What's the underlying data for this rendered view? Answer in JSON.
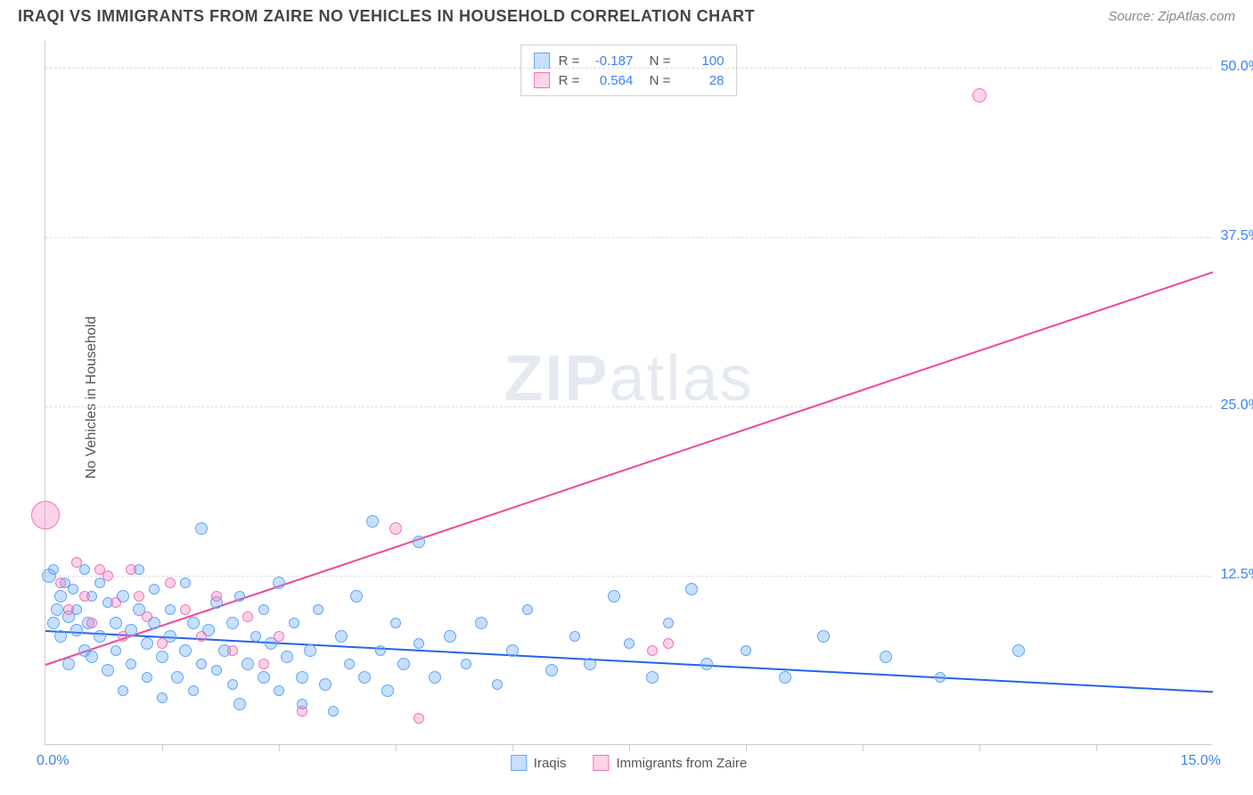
{
  "header": {
    "title": "IRAQI VS IMMIGRANTS FROM ZAIRE NO VEHICLES IN HOUSEHOLD CORRELATION CHART",
    "source": "Source: ZipAtlas.com"
  },
  "chart": {
    "type": "scatter",
    "ylabel": "No Vehicles in Household",
    "watermark": "ZIPatlas",
    "background_color": "#ffffff",
    "grid_color": "#dddddd",
    "axis_color": "#cccccc",
    "xlim": [
      0,
      15
    ],
    "ylim": [
      0,
      52
    ],
    "yticks": [
      {
        "value": 12.5,
        "label": "12.5%"
      },
      {
        "value": 25.0,
        "label": "25.0%"
      },
      {
        "value": 37.5,
        "label": "37.5%"
      },
      {
        "value": 50.0,
        "label": "50.0%"
      }
    ],
    "xticks": [
      1.5,
      3.0,
      4.5,
      6.0,
      7.5,
      9.0,
      10.5,
      12.0,
      13.5
    ],
    "xaxis_left_label": "0.0%",
    "xaxis_right_label": "15.0%",
    "series": [
      {
        "name": "Iraqis",
        "fill_color": "rgba(96,165,250,0.35)",
        "stroke_color": "#60a5fa",
        "trend_color": "#2563eb",
        "R": "-0.187",
        "N": "100",
        "trend": {
          "x1": 0,
          "y1": 8.5,
          "x2": 15,
          "y2": 4.0
        },
        "points": [
          {
            "x": 0.05,
            "y": 12.5,
            "r": 8
          },
          {
            "x": 0.1,
            "y": 9,
            "r": 7
          },
          {
            "x": 0.1,
            "y": 13,
            "r": 6
          },
          {
            "x": 0.15,
            "y": 10,
            "r": 7
          },
          {
            "x": 0.2,
            "y": 11,
            "r": 7
          },
          {
            "x": 0.2,
            "y": 8,
            "r": 7
          },
          {
            "x": 0.25,
            "y": 12,
            "r": 6
          },
          {
            "x": 0.3,
            "y": 9.5,
            "r": 7
          },
          {
            "x": 0.3,
            "y": 6,
            "r": 7
          },
          {
            "x": 0.35,
            "y": 11.5,
            "r": 6
          },
          {
            "x": 0.4,
            "y": 8.5,
            "r": 7
          },
          {
            "x": 0.4,
            "y": 10,
            "r": 6
          },
          {
            "x": 0.5,
            "y": 13,
            "r": 6
          },
          {
            "x": 0.5,
            "y": 7,
            "r": 7
          },
          {
            "x": 0.55,
            "y": 9,
            "r": 7
          },
          {
            "x": 0.6,
            "y": 11,
            "r": 6
          },
          {
            "x": 0.6,
            "y": 6.5,
            "r": 7
          },
          {
            "x": 0.7,
            "y": 8,
            "r": 7
          },
          {
            "x": 0.7,
            "y": 12,
            "r": 6
          },
          {
            "x": 0.8,
            "y": 10.5,
            "r": 6
          },
          {
            "x": 0.8,
            "y": 5.5,
            "r": 7
          },
          {
            "x": 0.9,
            "y": 9,
            "r": 7
          },
          {
            "x": 0.9,
            "y": 7,
            "r": 6
          },
          {
            "x": 1.0,
            "y": 11,
            "r": 7
          },
          {
            "x": 1.0,
            "y": 4,
            "r": 6
          },
          {
            "x": 1.1,
            "y": 8.5,
            "r": 7
          },
          {
            "x": 1.1,
            "y": 6,
            "r": 6
          },
          {
            "x": 1.2,
            "y": 13,
            "r": 6
          },
          {
            "x": 1.2,
            "y": 10,
            "r": 7
          },
          {
            "x": 1.3,
            "y": 7.5,
            "r": 7
          },
          {
            "x": 1.3,
            "y": 5,
            "r": 6
          },
          {
            "x": 1.4,
            "y": 9,
            "r": 7
          },
          {
            "x": 1.4,
            "y": 11.5,
            "r": 6
          },
          {
            "x": 1.5,
            "y": 6.5,
            "r": 7
          },
          {
            "x": 1.5,
            "y": 3.5,
            "r": 6
          },
          {
            "x": 1.6,
            "y": 8,
            "r": 7
          },
          {
            "x": 1.6,
            "y": 10,
            "r": 6
          },
          {
            "x": 1.7,
            "y": 5,
            "r": 7
          },
          {
            "x": 1.8,
            "y": 12,
            "r": 6
          },
          {
            "x": 1.8,
            "y": 7,
            "r": 7
          },
          {
            "x": 1.9,
            "y": 4,
            "r": 6
          },
          {
            "x": 1.9,
            "y": 9,
            "r": 7
          },
          {
            "x": 2.0,
            "y": 16,
            "r": 7
          },
          {
            "x": 2.0,
            "y": 6,
            "r": 6
          },
          {
            "x": 2.1,
            "y": 8.5,
            "r": 7
          },
          {
            "x": 2.2,
            "y": 5.5,
            "r": 6
          },
          {
            "x": 2.2,
            "y": 10.5,
            "r": 7
          },
          {
            "x": 2.3,
            "y": 7,
            "r": 7
          },
          {
            "x": 2.4,
            "y": 4.5,
            "r": 6
          },
          {
            "x": 2.4,
            "y": 9,
            "r": 7
          },
          {
            "x": 2.5,
            "y": 11,
            "r": 6
          },
          {
            "x": 2.5,
            "y": 3,
            "r": 7
          },
          {
            "x": 2.6,
            "y": 6,
            "r": 7
          },
          {
            "x": 2.7,
            "y": 8,
            "r": 6
          },
          {
            "x": 2.8,
            "y": 5,
            "r": 7
          },
          {
            "x": 2.8,
            "y": 10,
            "r": 6
          },
          {
            "x": 2.9,
            "y": 7.5,
            "r": 7
          },
          {
            "x": 3.0,
            "y": 4,
            "r": 6
          },
          {
            "x": 3.0,
            "y": 12,
            "r": 7
          },
          {
            "x": 3.1,
            "y": 6.5,
            "r": 7
          },
          {
            "x": 3.2,
            "y": 9,
            "r": 6
          },
          {
            "x": 3.3,
            "y": 5,
            "r": 7
          },
          {
            "x": 3.3,
            "y": 3,
            "r": 6
          },
          {
            "x": 3.4,
            "y": 7,
            "r": 7
          },
          {
            "x": 3.5,
            "y": 10,
            "r": 6
          },
          {
            "x": 3.6,
            "y": 4.5,
            "r": 7
          },
          {
            "x": 3.7,
            "y": 2.5,
            "r": 6
          },
          {
            "x": 3.8,
            "y": 8,
            "r": 7
          },
          {
            "x": 3.9,
            "y": 6,
            "r": 6
          },
          {
            "x": 4.0,
            "y": 11,
            "r": 7
          },
          {
            "x": 4.1,
            "y": 5,
            "r": 7
          },
          {
            "x": 4.2,
            "y": 16.5,
            "r": 7
          },
          {
            "x": 4.3,
            "y": 7,
            "r": 6
          },
          {
            "x": 4.4,
            "y": 4,
            "r": 7
          },
          {
            "x": 4.5,
            "y": 9,
            "r": 6
          },
          {
            "x": 4.6,
            "y": 6,
            "r": 7
          },
          {
            "x": 4.8,
            "y": 15,
            "r": 7
          },
          {
            "x": 4.8,
            "y": 7.5,
            "r": 6
          },
          {
            "x": 5.0,
            "y": 5,
            "r": 7
          },
          {
            "x": 5.2,
            "y": 8,
            "r": 7
          },
          {
            "x": 5.4,
            "y": 6,
            "r": 6
          },
          {
            "x": 5.6,
            "y": 9,
            "r": 7
          },
          {
            "x": 5.8,
            "y": 4.5,
            "r": 6
          },
          {
            "x": 6.0,
            "y": 7,
            "r": 7
          },
          {
            "x": 6.2,
            "y": 10,
            "r": 6
          },
          {
            "x": 6.5,
            "y": 5.5,
            "r": 7
          },
          {
            "x": 6.8,
            "y": 8,
            "r": 6
          },
          {
            "x": 7.0,
            "y": 6,
            "r": 7
          },
          {
            "x": 7.3,
            "y": 11,
            "r": 7
          },
          {
            "x": 7.5,
            "y": 7.5,
            "r": 6
          },
          {
            "x": 7.8,
            "y": 5,
            "r": 7
          },
          {
            "x": 8.0,
            "y": 9,
            "r": 6
          },
          {
            "x": 8.3,
            "y": 11.5,
            "r": 7
          },
          {
            "x": 8.5,
            "y": 6,
            "r": 7
          },
          {
            "x": 9.0,
            "y": 7,
            "r": 6
          },
          {
            "x": 9.5,
            "y": 5,
            "r": 7
          },
          {
            "x": 10.0,
            "y": 8,
            "r": 7
          },
          {
            "x": 10.8,
            "y": 6.5,
            "r": 7
          },
          {
            "x": 11.5,
            "y": 5,
            "r": 6
          },
          {
            "x": 12.5,
            "y": 7,
            "r": 7
          }
        ]
      },
      {
        "name": "Immigrants from Zaire",
        "fill_color": "rgba(244,114,182,0.3)",
        "stroke_color": "#f472b6",
        "trend_color": "#ec4899",
        "R": "0.564",
        "N": "28",
        "trend": {
          "x1": 0,
          "y1": 6.0,
          "x2": 15,
          "y2": 35.0
        },
        "points": [
          {
            "x": 0.0,
            "y": 17,
            "r": 16
          },
          {
            "x": 0.2,
            "y": 12,
            "r": 6
          },
          {
            "x": 0.3,
            "y": 10,
            "r": 6
          },
          {
            "x": 0.4,
            "y": 13.5,
            "r": 6
          },
          {
            "x": 0.5,
            "y": 11,
            "r": 6
          },
          {
            "x": 0.6,
            "y": 9,
            "r": 6
          },
          {
            "x": 0.7,
            "y": 13,
            "r": 6
          },
          {
            "x": 0.8,
            "y": 12.5,
            "r": 6
          },
          {
            "x": 0.9,
            "y": 10.5,
            "r": 6
          },
          {
            "x": 1.0,
            "y": 8,
            "r": 6
          },
          {
            "x": 1.1,
            "y": 13,
            "r": 6
          },
          {
            "x": 1.2,
            "y": 11,
            "r": 6
          },
          {
            "x": 1.3,
            "y": 9.5,
            "r": 6
          },
          {
            "x": 1.5,
            "y": 7.5,
            "r": 6
          },
          {
            "x": 1.6,
            "y": 12,
            "r": 6
          },
          {
            "x": 1.8,
            "y": 10,
            "r": 6
          },
          {
            "x": 2.0,
            "y": 8,
            "r": 6
          },
          {
            "x": 2.2,
            "y": 11,
            "r": 6
          },
          {
            "x": 2.4,
            "y": 7,
            "r": 6
          },
          {
            "x": 2.6,
            "y": 9.5,
            "r": 6
          },
          {
            "x": 2.8,
            "y": 6,
            "r": 6
          },
          {
            "x": 3.0,
            "y": 8,
            "r": 6
          },
          {
            "x": 3.3,
            "y": 2.5,
            "r": 6
          },
          {
            "x": 4.5,
            "y": 16,
            "r": 7
          },
          {
            "x": 4.8,
            "y": 2,
            "r": 6
          },
          {
            "x": 7.8,
            "y": 7,
            "r": 6
          },
          {
            "x": 8.0,
            "y": 7.5,
            "r": 6
          },
          {
            "x": 12.0,
            "y": 48,
            "r": 8
          }
        ]
      }
    ],
    "legend": {
      "labels": [
        "Iraqis",
        "Immigrants from Zaire"
      ]
    }
  }
}
